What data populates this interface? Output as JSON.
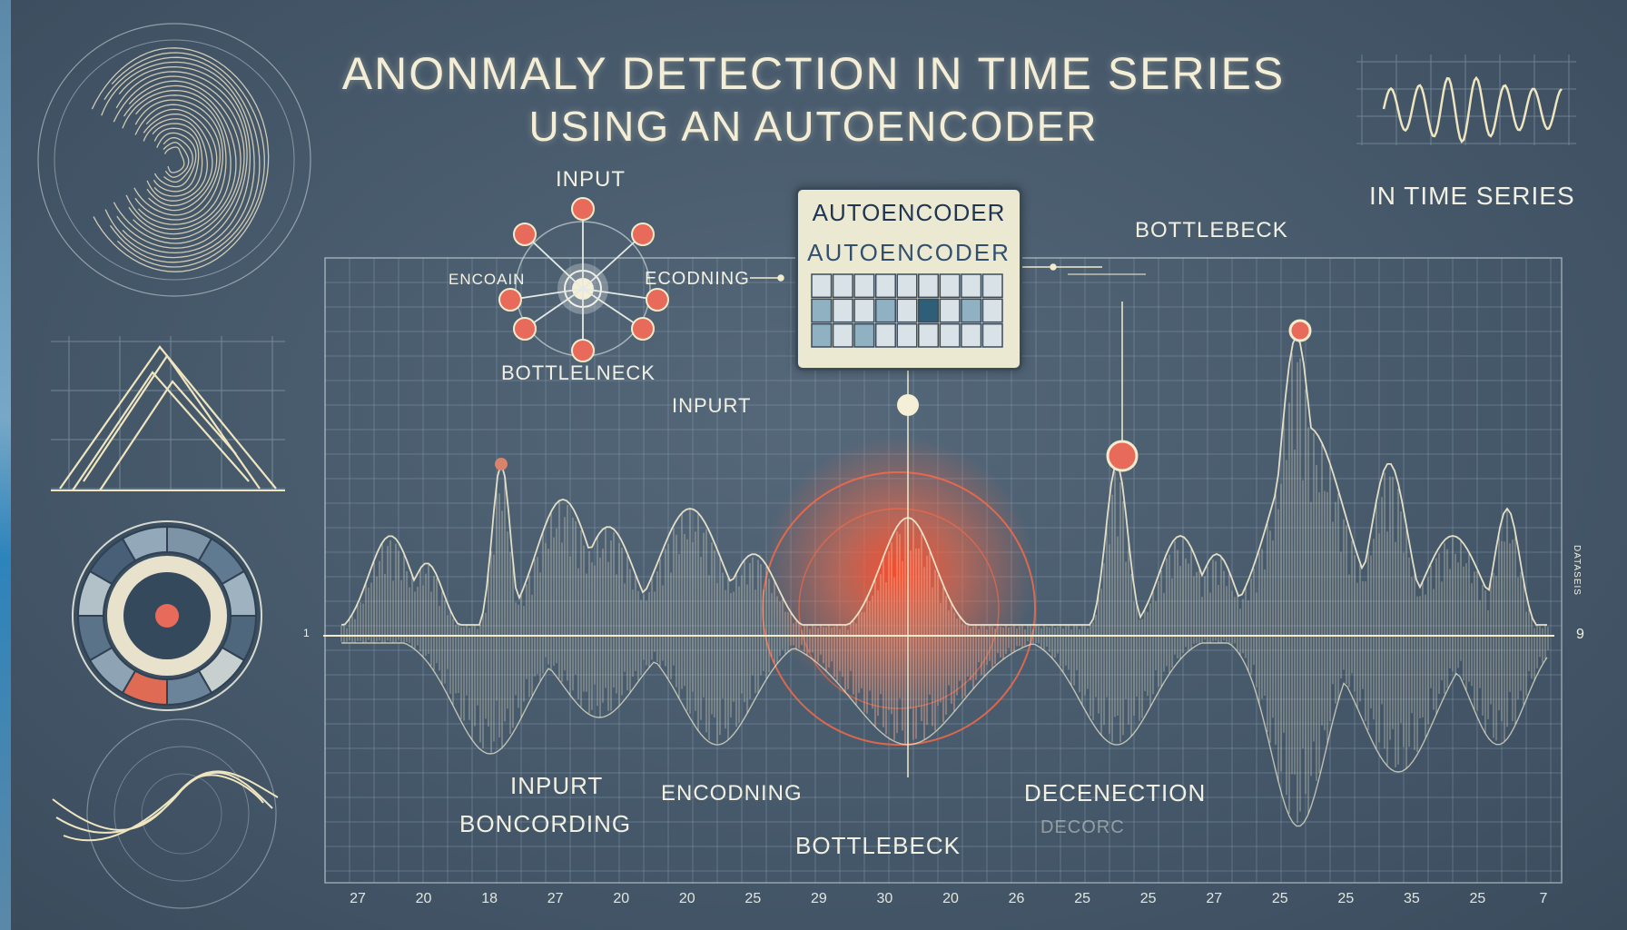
{
  "title": {
    "line1": "ANONMALY DETECTION IN TIME SERIES",
    "line2": "USING AN AUTOENCODER"
  },
  "network": {
    "label_top": "INPUT",
    "label_left": "ENCOAIN",
    "label_right": "ECODNING",
    "label_bottom": "BOTTLELNECK"
  },
  "autoencoder_panel": {
    "title": "AUTOENCODER",
    "subtitle": "AUTOENCODER"
  },
  "labels": {
    "bottlebeck_top": "BOTTLEBECK",
    "in_time_series": "IN TIME SERIES",
    "input_mid": "INPURT",
    "input_low": "INPURT",
    "boncording": "BONCORDING",
    "encoding": "ENCODNING",
    "bottlebeck_bottom": "BOTTLEBECK",
    "deconection": "DECENECTION",
    "decorc": "DECORC",
    "axis_left_tick": "1",
    "axis_right_tick": "9",
    "side_axis_label": "DATASEIS"
  },
  "x_ticks": [
    "27",
    "20",
    "18",
    "27",
    "20",
    "20",
    "25",
    "29",
    "30",
    "20",
    "26",
    "25",
    "25",
    "27",
    "25",
    "25",
    "35",
    "25",
    "7"
  ],
  "colors": {
    "background": "#46596b",
    "signal": "#f0e8c8",
    "anomaly": "#ff5a3c",
    "node": "#e86a5a",
    "grid": "#8aa2b4"
  },
  "icons": [
    "fingerprint-icon",
    "triangle-wave-icon",
    "target-wheel-icon",
    "wave-scope-icon",
    "sine-wave-icon"
  ]
}
